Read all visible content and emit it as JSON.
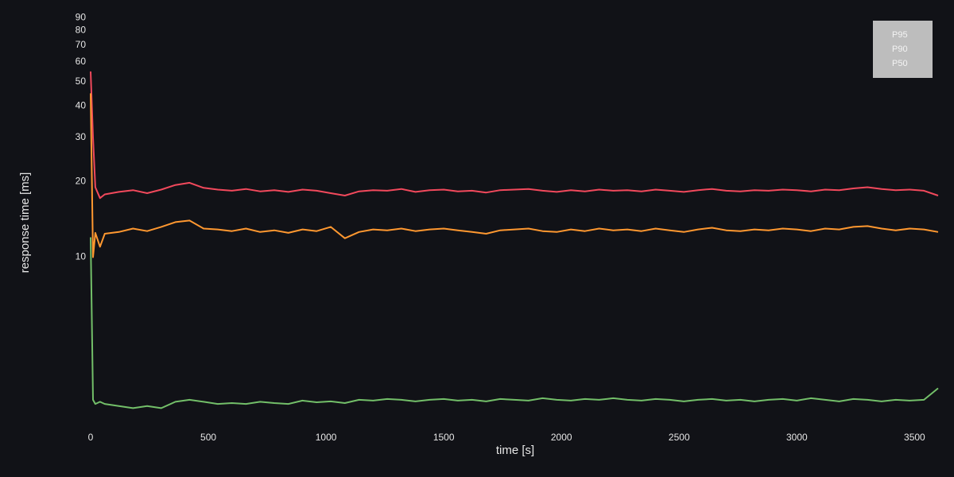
{
  "chart_data": {
    "type": "line",
    "xlabel": "time [s]",
    "ylabel": "response time [ms]",
    "x": [
      0,
      10,
      20,
      40,
      60,
      120,
      180,
      240,
      300,
      360,
      420,
      480,
      540,
      600,
      660,
      720,
      780,
      840,
      900,
      960,
      1020,
      1080,
      1140,
      1200,
      1260,
      1320,
      1380,
      1440,
      1500,
      1560,
      1620,
      1680,
      1740,
      1800,
      1860,
      1920,
      1980,
      2040,
      2100,
      2160,
      2220,
      2280,
      2340,
      2400,
      2460,
      2520,
      2580,
      2640,
      2700,
      2760,
      2820,
      2880,
      2940,
      3000,
      3060,
      3120,
      3180,
      3240,
      3300,
      3360,
      3420,
      3480,
      3540,
      3600
    ],
    "series": [
      {
        "name": "P95",
        "color": "#f2495c",
        "values": [
          55,
          30,
          19,
          17.2,
          17.8,
          18.2,
          18.5,
          18.0,
          18.6,
          19.4,
          19.8,
          18.9,
          18.6,
          18.4,
          18.7,
          18.3,
          18.5,
          18.2,
          18.6,
          18.4,
          18.0,
          17.6,
          18.3,
          18.5,
          18.4,
          18.7,
          18.2,
          18.5,
          18.6,
          18.3,
          18.4,
          18.1,
          18.5,
          18.6,
          18.7,
          18.4,
          18.2,
          18.5,
          18.3,
          18.6,
          18.4,
          18.5,
          18.3,
          18.6,
          18.4,
          18.2,
          18.5,
          18.7,
          18.4,
          18.3,
          18.5,
          18.4,
          18.6,
          18.5,
          18.3,
          18.6,
          18.5,
          18.8,
          19.0,
          18.7,
          18.5,
          18.6,
          18.4,
          17.6
        ]
      },
      {
        "name": "P90",
        "color": "#ff9830",
        "values": [
          45,
          10,
          12.5,
          11,
          12.4,
          12.6,
          13.0,
          12.7,
          13.2,
          13.8,
          14.0,
          13.0,
          12.9,
          12.7,
          13.0,
          12.6,
          12.8,
          12.5,
          12.9,
          12.7,
          13.2,
          11.9,
          12.6,
          12.9,
          12.8,
          13.0,
          12.7,
          12.9,
          13.0,
          12.8,
          12.6,
          12.4,
          12.8,
          12.9,
          13.0,
          12.7,
          12.6,
          12.9,
          12.7,
          13.0,
          12.8,
          12.9,
          12.7,
          13.0,
          12.8,
          12.6,
          12.9,
          13.1,
          12.8,
          12.7,
          12.9,
          12.8,
          13.0,
          12.9,
          12.7,
          13.0,
          12.9,
          13.2,
          13.3,
          13.0,
          12.8,
          13.0,
          12.9,
          12.6
        ]
      },
      {
        "name": "P50",
        "color": "#73bf69",
        "values": [
          12,
          2.7,
          2.6,
          2.65,
          2.6,
          2.55,
          2.5,
          2.55,
          2.5,
          2.65,
          2.7,
          2.65,
          2.6,
          2.62,
          2.6,
          2.65,
          2.62,
          2.6,
          2.68,
          2.64,
          2.66,
          2.62,
          2.7,
          2.68,
          2.72,
          2.7,
          2.66,
          2.7,
          2.72,
          2.68,
          2.7,
          2.66,
          2.72,
          2.7,
          2.68,
          2.74,
          2.7,
          2.68,
          2.72,
          2.7,
          2.74,
          2.7,
          2.68,
          2.72,
          2.7,
          2.66,
          2.7,
          2.72,
          2.68,
          2.7,
          2.66,
          2.7,
          2.72,
          2.68,
          2.74,
          2.7,
          2.66,
          2.72,
          2.7,
          2.66,
          2.7,
          2.68,
          2.7,
          3.0
        ]
      }
    ],
    "xlim": [
      0,
      3600
    ],
    "xticks": [
      0,
      500,
      1000,
      1500,
      2000,
      2500,
      3000,
      3500
    ],
    "ylim": [
      2,
      100
    ],
    "yticks": [
      10,
      20,
      30,
      40,
      50,
      60,
      70,
      80,
      90
    ],
    "log_y": true,
    "grid": false,
    "legend": "top-right"
  }
}
